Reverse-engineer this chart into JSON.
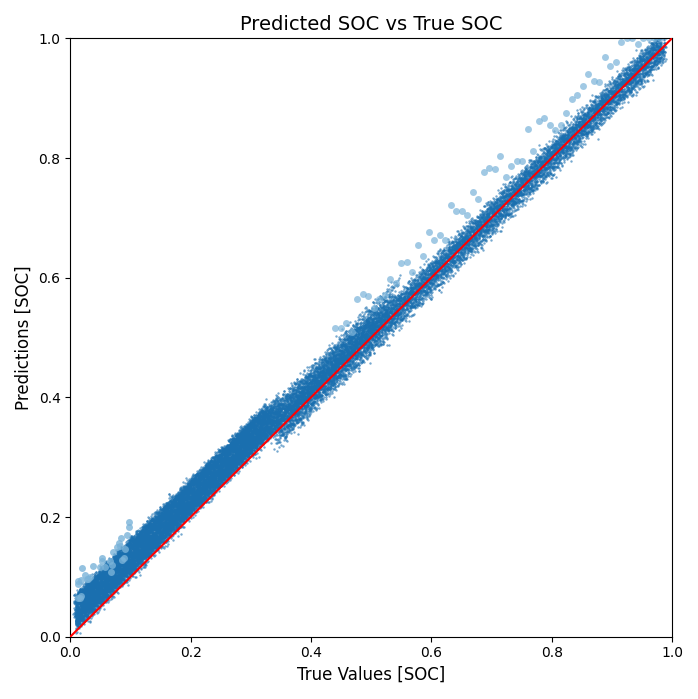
{
  "title": "Predicted SOC vs True SOC",
  "xlabel": "True Values [SOC]",
  "ylabel": "Predictions [SOC]",
  "xlim": [
    0.0,
    1.0
  ],
  "ylim": [
    0.0,
    1.0
  ],
  "ref_line_color": "red",
  "scatter_color_dense": "#1a6faf",
  "scatter_color_sparse": "#7ab3d9",
  "scatter_alpha_dense": 0.6,
  "scatter_alpha_sparse": 0.7,
  "scatter_size_dense": 3,
  "scatter_size_sparse": 25,
  "seed": 42,
  "background_color": "#ffffff",
  "title_fontsize": 14
}
